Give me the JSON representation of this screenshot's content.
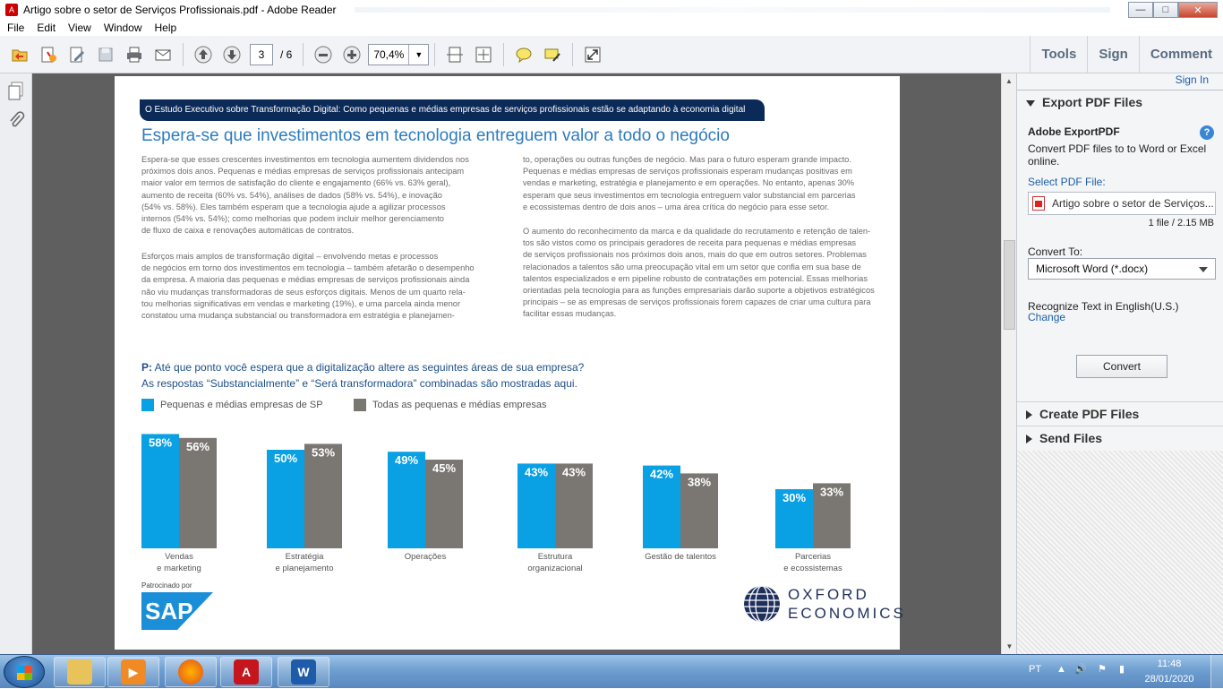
{
  "window": {
    "title": "Artigo sobre o setor de Serviços Profissionais.pdf - Adobe Reader"
  },
  "menu": [
    "File",
    "Edit",
    "View",
    "Window",
    "Help"
  ],
  "toolbar": {
    "page_current": "3",
    "page_total": "/ 6",
    "zoom": "70,4%"
  },
  "right_tabs": [
    "Tools",
    "Sign",
    "Comment"
  ],
  "document": {
    "banner": "O Estudo Executivo sobre Transformação Digital: Como pequenas e médias empresas de serviços profissionais estão se adaptando à economia digital",
    "heading": "Espera-se que investimentos em tecnologia entreguem valor a todo o negócio",
    "col1_p1": [
      "Espera-se que esses crescentes investimentos em tecnologia aumentem dividendos nos",
      "próximos dois anos. Pequenas e médias empresas de serviços profissionais antecipam",
      "maior valor em termos de satisfação do cliente e engajamento (66% vs. 63% geral),",
      "aumento de receita (60% vs. 54%), análises de dados (58% vs. 54%), e inovação",
      "(54% vs. 58%). Eles também esperam que a tecnologia ajude a agilizar processos",
      "internos (54% vs. 54%); como melhorias que podem incluir melhor gerenciamento",
      "de fluxo de caixa e renovações automáticas de contratos."
    ],
    "col1_p2": [
      "Esforços mais amplos de transformação digital – envolvendo metas e processos",
      "de negócios em torno dos investimentos em tecnologia – também afetarão o desempenho",
      "da empresa. A maioria das pequenas e médias empresas de serviços profissionais ainda",
      "não viu mudanças transformadoras de seus esforços digitais. Menos de um quarto rela-",
      "tou melhorias significativas em vendas e marketing (19%), e uma parcela ainda menor",
      "constatou uma mudança substancial ou transformadora em estratégia e planejamen-"
    ],
    "col2_p1": [
      "to, operações ou outras funções de negócio. Mas para o futuro esperam grande impacto.",
      "Pequenas e médias empresas de serviços profissionais esperam mudanças positivas em",
      "vendas e marketing, estratégia e planejamento e em operações. No entanto, apenas 30%",
      "esperam que seus investimentos em tecnologia entreguem valor substancial em parcerias",
      "e ecossistemas dentro de dois anos – uma área crítica do negócio para esse setor."
    ],
    "col2_p2": [
      "O aumento do reconhecimento da marca e da qualidade do recrutamento e retenção de talen-",
      "tos são vistos como os principais geradores de receita para pequenas e médias empresas",
      "de serviços profissionais nos próximos dois anos, mais do que em outros setores. Problemas",
      "relacionados a talentos são uma preocupação vital em um setor que confia em sua base de",
      "talentos especializados e em pipeline robusto de contratações em potencial. Essas melhorias",
      "orientadas pela tecnologia para as funções empresariais darão suporte a objetivos estratégicos",
      "principais – se as empresas de serviços profissionais forem capazes de criar uma cultura para",
      "facilitar essas mudanças."
    ],
    "question_prefix": "P:",
    "question": " Até que ponto você espera que a digitalização altere as seguintes áreas de sua empresa?",
    "question_note": "As respostas “Substancialmente” e “Será transformadora” combinadas são mostradas aqui.",
    "sponsor_label": "Patrocinado por",
    "sap_logo": "SAP",
    "oxford_line1": "OXFORD",
    "oxford_line2": "ECONOMICS"
  },
  "chart_data": {
    "type": "bar",
    "categories": [
      [
        "Vendas",
        "e marketing"
      ],
      [
        "Estratégia",
        "e planejamento"
      ],
      [
        "Operações"
      ],
      [
        "Estrutura",
        "organizacional"
      ],
      [
        "Gestão de talentos"
      ],
      [
        "Parcerias",
        "e ecossistemas"
      ]
    ],
    "series": [
      {
        "name": "Pequenas e médias empresas de SP",
        "values": [
          58,
          50,
          49,
          43,
          42,
          30
        ],
        "color": "#0aa0e4"
      },
      {
        "name": "Todas as pequenas e médias empresas",
        "values": [
          56,
          53,
          45,
          43,
          38,
          33
        ],
        "color": "#7a7773"
      }
    ],
    "value_suffix": "%",
    "ylim": [
      0,
      60
    ]
  },
  "side_panel": {
    "sign_in": "Sign In",
    "export_title": "Export PDF Files",
    "adobe_export": "Adobe ExportPDF",
    "desc": "Convert PDF files to to Word or Excel online.",
    "select_label": "Select PDF File:",
    "file_name": "Artigo sobre o setor de Serviços...",
    "file_info": "1 file / 2.15 MB",
    "convert_to": "Convert To:",
    "format": "Microsoft Word (*.docx)",
    "recognize": "Recognize Text in English(U.S.)",
    "change": "Change",
    "convert_btn": "Convert",
    "create_title": "Create PDF Files",
    "send_title": "Send Files"
  },
  "taskbar": {
    "lang": "PT",
    "time": "11:48",
    "date": "28/01/2020"
  },
  "colors": {
    "accent_blue": "#0aa0e4",
    "gray": "#7a7773",
    "navy": "#0c2a57",
    "heading": "#2d7bbf"
  }
}
